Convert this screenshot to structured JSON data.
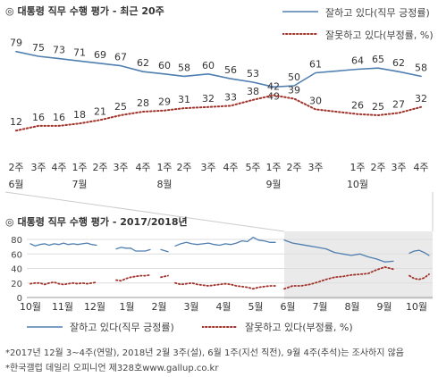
{
  "chart_data": [
    {
      "type": "line",
      "title": "대통령 직무 수행 평가 - 최근 20주",
      "title_marker": "◎",
      "categories": [
        [
          "2주",
          "6월"
        ],
        [
          "3주",
          ""
        ],
        [
          "4주",
          ""
        ],
        [
          "1주",
          "7월"
        ],
        [
          "2주",
          ""
        ],
        [
          "3주",
          ""
        ],
        [
          "4주",
          ""
        ],
        [
          "1주",
          "8월"
        ],
        [
          "2주",
          ""
        ],
        [
          "3주",
          ""
        ],
        [
          "4주",
          ""
        ],
        [
          "5주",
          ""
        ],
        [
          "1주",
          "9월"
        ],
        [
          "2주",
          ""
        ],
        [
          "3주",
          ""
        ],
        [
          "1주",
          "10월"
        ],
        [
          "2주",
          ""
        ],
        [
          "3주",
          ""
        ],
        [
          "4주",
          ""
        ]
      ],
      "series": [
        {
          "name": "잘하고 있다(직무 긍정률)",
          "color": "#4f7fb0",
          "style": "solid",
          "values": [
            79,
            75,
            73,
            71,
            69,
            67,
            62,
            60,
            58,
            60,
            56,
            53,
            49,
            50,
            61,
            64,
            65,
            62,
            58
          ]
        },
        {
          "name": "잘못하고 있다(부정률, %)",
          "color": "#a0322a",
          "style": "dotted",
          "values": [
            12,
            16,
            16,
            18,
            21,
            25,
            28,
            29,
            31,
            32,
            33,
            38,
            42,
            39,
            30,
            26,
            25,
            27,
            32
          ]
        }
      ],
      "x_pos": [
        18,
        43,
        66,
        89,
        112,
        135,
        160,
        184,
        206,
        233,
        258,
        283,
        306,
        329,
        353,
        400,
        423,
        446,
        471
      ],
      "label_above": [
        true,
        true,
        true,
        true,
        true,
        true,
        true,
        true,
        true,
        true,
        true,
        true,
        false,
        true,
        true,
        true,
        true,
        true,
        true
      ]
    },
    {
      "type": "line",
      "title": "대통령 직무 수행 평가 - 2017/2018년",
      "title_marker": "◎",
      "ylim": [
        0,
        80
      ],
      "yticks": [
        "80",
        "60",
        "40",
        "20",
        "0"
      ],
      "x_labels": [
        "10월",
        "11월",
        "12월",
        "1월",
        "2월",
        "3월",
        "4월",
        "5월",
        "6월",
        "7월",
        "8월",
        "9월",
        "10월"
      ],
      "series": [
        {
          "name": "잘하고 있다(직무 긍정률)",
          "color": "#4f7fb0",
          "style": "solid",
          "segments": [
            [
              74,
              71,
              73,
              74,
              72,
              74,
              73,
              75,
              73,
              74,
              73,
              74,
              75,
              73,
              72
            ],
            [
              67,
              69,
              68,
              68,
              64,
              64,
              64,
              66
            ],
            [
              66,
              63
            ],
            [
              71,
              74,
              76,
              74,
              73,
              74,
              75,
              73,
              72,
              74,
              73,
              75,
              78,
              77,
              83,
              79,
              78,
              76,
              76
            ],
            [
              79,
              75,
              73,
              71,
              69,
              67,
              62,
              60,
              58,
              60,
              56,
              53,
              49,
              50
            ],
            [
              61,
              64,
              65,
              62,
              58
            ]
          ]
        },
        {
          "name": "잘못하고 있다(부정률, %)",
          "color": "#a0322a",
          "style": "dotted",
          "segments": [
            [
              19,
              20,
              20,
              18,
              20,
              21,
              19,
              18,
              19,
              20,
              19,
              20,
              19,
              20,
              21
            ],
            [
              24,
              23,
              26,
              28,
              29,
              30,
              30,
              31
            ],
            [
              28,
              30
            ],
            [
              20,
              18,
              19,
              20,
              18,
              17,
              16,
              17,
              18,
              19,
              18,
              16,
              15,
              14,
              12,
              14,
              15,
              16,
              16
            ],
            [
              12,
              16,
              16,
              18,
              21,
              25,
              28,
              29,
              31,
              32,
              33,
              38,
              42,
              39
            ],
            [
              30,
              26,
              25,
              27,
              32
            ]
          ]
        }
      ]
    }
  ],
  "legend": {
    "positive": "잘하고 있다(직무 긍정률)",
    "negative": "잘못하고 있다(부정률, %)"
  },
  "footnotes": [
    "*2017년 12월 3~4주(연말), 2018년 2월 3주(설), 6월 1주(지선 직전), 9월 4주(추석)는 조사하지 않음",
    "*한국갤럽 데일리 오피니언 제328호www.gallup.co.kr"
  ]
}
